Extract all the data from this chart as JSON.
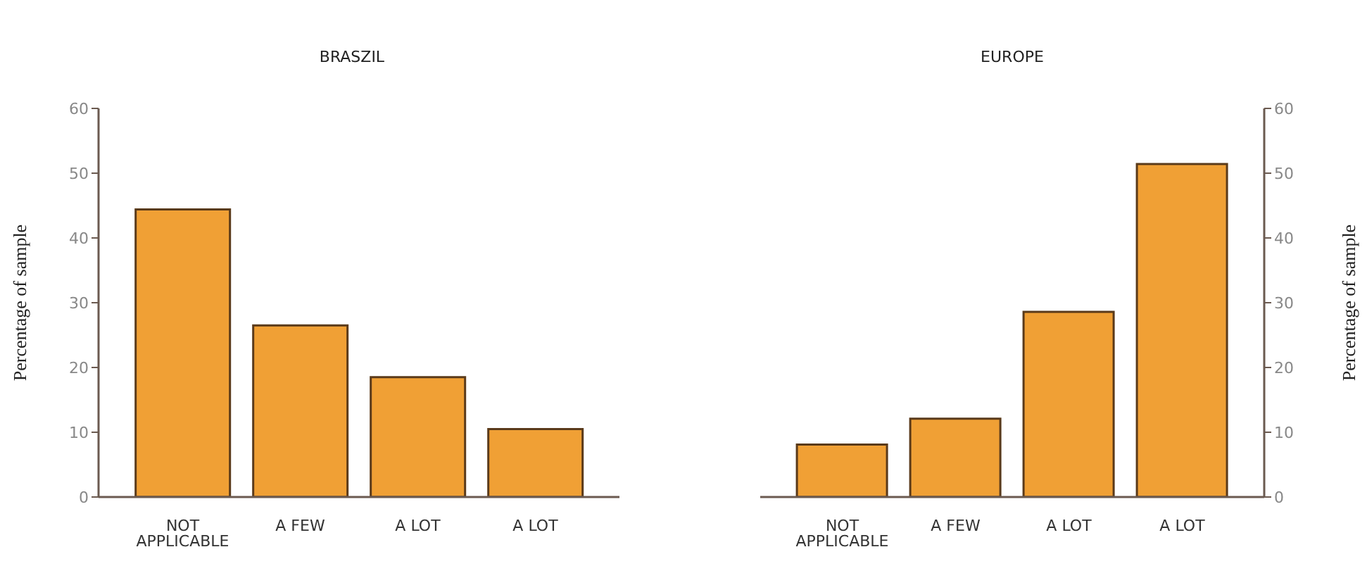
{
  "chart_data": [
    {
      "type": "bar",
      "title": "BRASZIL",
      "ylabel": "Percentage of sample",
      "categories": [
        "NOT APPLICABLE",
        "A FEW",
        "A LOT",
        "A LOT"
      ],
      "series": [
        {
          "color": "#f0a035",
          "values": [
            44.4,
            26.5,
            18.5,
            10.5
          ]
        }
      ],
      "ylim": [
        0,
        60
      ],
      "yticks": [
        0,
        10,
        20,
        30,
        40,
        50,
        60
      ]
    },
    {
      "type": "bar",
      "title": "EUROPE",
      "y2label": "Percentage of sample",
      "categories": [
        "NOT APPLICABLE",
        "A FEW",
        "A LOT",
        "A LOT"
      ],
      "series": [
        {
          "color": "#f0a035",
          "values": [
            8.1,
            12.1,
            28.6,
            51.4
          ],
          "axis": "y2"
        }
      ],
      "y2lim": [
        0,
        60
      ],
      "y2ticks": [
        0,
        10,
        20,
        30,
        40,
        50,
        60
      ]
    }
  ]
}
